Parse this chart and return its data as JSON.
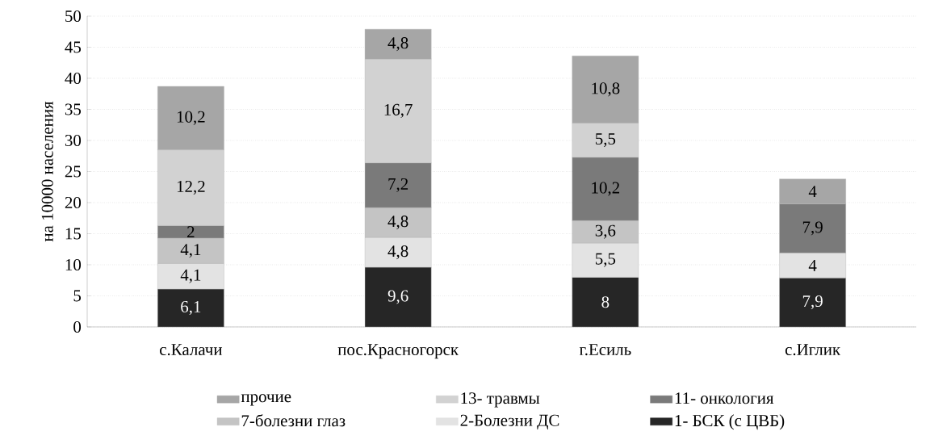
{
  "chart_data": {
    "type": "bar",
    "stacked": true,
    "ylabel": "на 10000 населения",
    "categories": [
      "с.Калачи",
      "пос.Красногорск",
      "г.Есиль",
      "с.Иглик"
    ],
    "ylim": [
      0,
      50
    ],
    "yticks": [
      0,
      5,
      10,
      15,
      20,
      25,
      30,
      35,
      40,
      45,
      50
    ],
    "grid": "y",
    "legend": "bottom",
    "series": [
      {
        "name": "1- БСК (с ЦВБ)",
        "color": "#262626",
        "values": [
          6.1,
          9.6,
          8,
          7.9
        ],
        "value_labels": [
          "6,1",
          "9,6",
          "8",
          "7,9"
        ]
      },
      {
        "name": "2-Болезни ДС",
        "color": "#e3e3e3",
        "values": [
          4.1,
          4.8,
          5.5,
          4
        ],
        "value_labels": [
          "4,1",
          "4,8",
          "5,5",
          "4"
        ]
      },
      {
        "name": "7-болезни глаз",
        "color": "#c4c4c4",
        "values": [
          4.1,
          4.8,
          3.6,
          null
        ],
        "value_labels": [
          "4,1",
          "4,8",
          "3,6",
          null
        ]
      },
      {
        "name": "11- онкология",
        "color": "#7a7a7a",
        "values": [
          2,
          7.2,
          10.2,
          7.9
        ],
        "value_labels": [
          "2",
          "7,2",
          "10,2",
          "7,9"
        ]
      },
      {
        "name": "13- травмы",
        "color": "#d2d2d2",
        "values": [
          12.2,
          16.7,
          5.5,
          null
        ],
        "value_labels": [
          "12,2",
          "16,7",
          "5,5",
          null
        ]
      },
      {
        "name": "прочие",
        "color": "#a6a6a6",
        "values": [
          10.2,
          4.8,
          10.8,
          4
        ],
        "value_labels": [
          "10,2",
          "4,8",
          "10,8",
          "4"
        ]
      }
    ]
  }
}
